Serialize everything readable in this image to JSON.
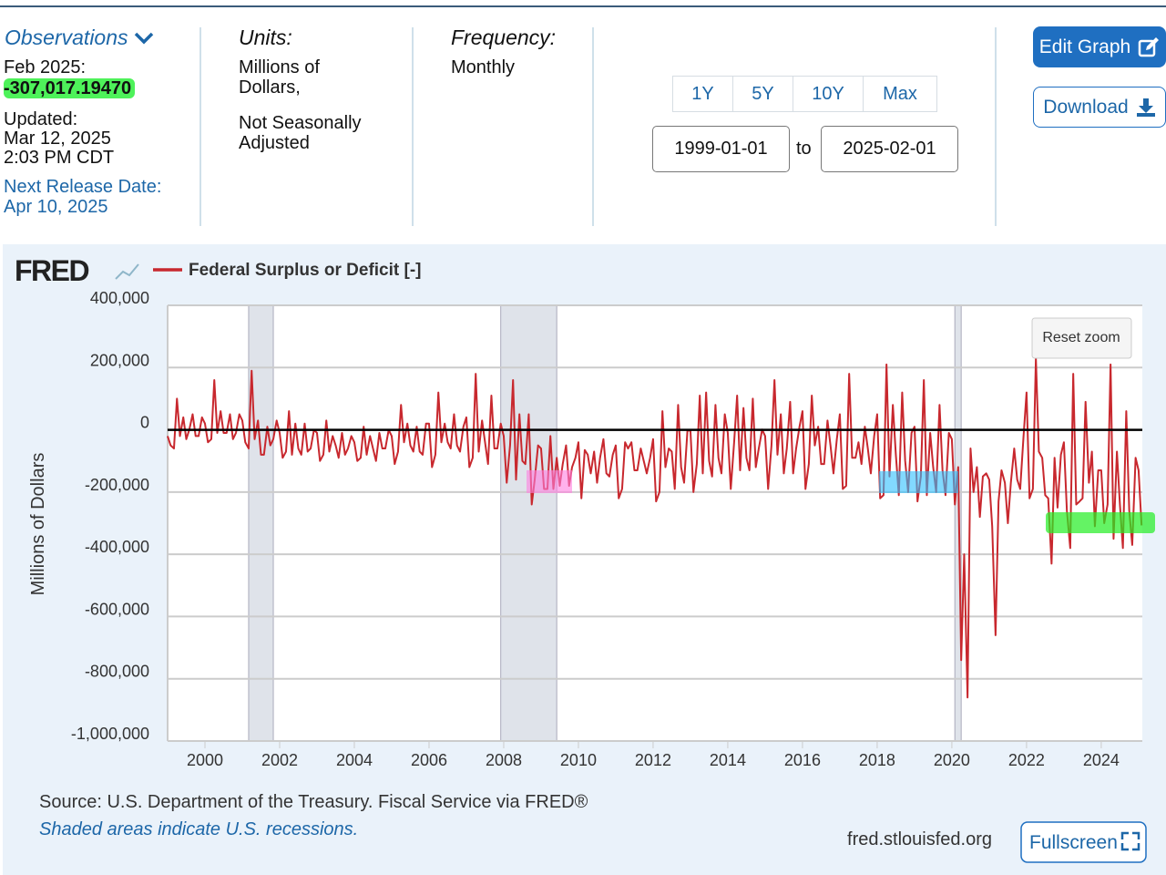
{
  "observations": {
    "title": "Observations",
    "date": "Feb 2025:",
    "value": "-307,017.19470",
    "updated_label": "Updated:",
    "updated_date": "Mar 12, 2025",
    "updated_time": "2:03 PM CDT",
    "next_release": "Next Release Date: Apr 10, 2025"
  },
  "units": {
    "title": "Units:",
    "line1": "Millions of Dollars,",
    "line2": "Not Seasonally Adjusted"
  },
  "frequency": {
    "title": "Frequency:",
    "value": "Monthly"
  },
  "range_buttons": [
    "1Y",
    "5Y",
    "10Y",
    "Max"
  ],
  "date_range": {
    "start": "1999-01-01",
    "to": "to",
    "end": "2025-02-01"
  },
  "buttons": {
    "edit": "Edit Graph",
    "download": "Download",
    "fullscreen": "Fullscreen",
    "reset_zoom": "Reset zoom"
  },
  "footer": {
    "source": "Source: U.S. Department of the Treasury. Fiscal Service via FRED®",
    "note": "Shaded areas indicate U.S. recessions.",
    "site": "fred.stlouisfed.org"
  },
  "chart_data": {
    "type": "line",
    "logo": "FRED",
    "y_label": "Millions of Dollars",
    "xlim": [
      1999,
      2025.1
    ],
    "xticks": [
      2000,
      2002,
      2004,
      2006,
      2008,
      2010,
      2012,
      2014,
      2016,
      2018,
      2020,
      2022,
      2024
    ],
    "ylim": [
      -1000000,
      400000
    ],
    "yticks": [
      {
        "value": -1000000,
        "label": "-1,000,000"
      },
      {
        "value": -800000,
        "label": "-800,000"
      },
      {
        "value": -600000,
        "label": "-600,000"
      },
      {
        "value": -400000,
        "label": "-400,000"
      },
      {
        "value": -200000,
        "label": "-200,000"
      },
      0,
      {
        "value": 200000,
        "label": "200,000"
      },
      {
        "value": 400000,
        "label": "400,000"
      }
    ],
    "grid": true,
    "recessions": [
      [
        2001.17,
        2001.83
      ],
      [
        2007.92,
        2009.42
      ],
      [
        2020.08,
        2020.25
      ]
    ],
    "series": [
      {
        "name": "Federal Surplus or Deficit [-]",
        "color": "#c8282e",
        "x": [
          1999,
          1999.08,
          1999.17,
          1999.25,
          1999.33,
          1999.42,
          1999.5,
          1999.58,
          1999.67,
          1999.75,
          1999.83,
          1999.92,
          2000,
          2000.08,
          2000.17,
          2000.25,
          2000.33,
          2000.42,
          2000.5,
          2000.58,
          2000.67,
          2000.75,
          2000.83,
          2000.92,
          2001,
          2001.08,
          2001.17,
          2001.25,
          2001.33,
          2001.42,
          2001.5,
          2001.58,
          2001.67,
          2001.75,
          2001.83,
          2001.92,
          2002,
          2002.08,
          2002.17,
          2002.25,
          2002.33,
          2002.42,
          2002.5,
          2002.58,
          2002.67,
          2002.75,
          2002.83,
          2002.92,
          2003,
          2003.08,
          2003.17,
          2003.25,
          2003.33,
          2003.42,
          2003.5,
          2003.58,
          2003.67,
          2003.75,
          2003.83,
          2003.92,
          2004,
          2004.08,
          2004.17,
          2004.25,
          2004.33,
          2004.42,
          2004.5,
          2004.58,
          2004.67,
          2004.75,
          2004.83,
          2004.92,
          2005,
          2005.08,
          2005.17,
          2005.25,
          2005.33,
          2005.42,
          2005.5,
          2005.58,
          2005.67,
          2005.75,
          2005.83,
          2005.92,
          2006,
          2006.08,
          2006.17,
          2006.25,
          2006.33,
          2006.42,
          2006.5,
          2006.58,
          2006.67,
          2006.75,
          2006.83,
          2006.92,
          2007,
          2007.08,
          2007.17,
          2007.25,
          2007.33,
          2007.42,
          2007.5,
          2007.58,
          2007.67,
          2007.75,
          2007.83,
          2007.92,
          2008,
          2008.08,
          2008.17,
          2008.25,
          2008.33,
          2008.42,
          2008.5,
          2008.58,
          2008.67,
          2008.75,
          2008.83,
          2008.92,
          2009,
          2009.08,
          2009.17,
          2009.25,
          2009.33,
          2009.42,
          2009.5,
          2009.58,
          2009.67,
          2009.75,
          2009.83,
          2009.92,
          2010,
          2010.08,
          2010.17,
          2010.25,
          2010.33,
          2010.42,
          2010.5,
          2010.58,
          2010.67,
          2010.75,
          2010.83,
          2010.92,
          2011,
          2011.08,
          2011.17,
          2011.25,
          2011.33,
          2011.42,
          2011.5,
          2011.58,
          2011.67,
          2011.75,
          2011.83,
          2011.92,
          2012,
          2012.08,
          2012.17,
          2012.25,
          2012.33,
          2012.42,
          2012.5,
          2012.58,
          2012.67,
          2012.75,
          2012.83,
          2012.92,
          2013,
          2013.08,
          2013.17,
          2013.25,
          2013.33,
          2013.42,
          2013.5,
          2013.58,
          2013.67,
          2013.75,
          2013.83,
          2013.92,
          2014,
          2014.08,
          2014.17,
          2014.25,
          2014.33,
          2014.42,
          2014.5,
          2014.58,
          2014.67,
          2014.75,
          2014.83,
          2014.92,
          2015,
          2015.08,
          2015.17,
          2015.25,
          2015.33,
          2015.42,
          2015.5,
          2015.58,
          2015.67,
          2015.75,
          2015.83,
          2015.92,
          2016,
          2016.08,
          2016.17,
          2016.25,
          2016.33,
          2016.42,
          2016.5,
          2016.58,
          2016.67,
          2016.75,
          2016.83,
          2016.92,
          2017,
          2017.08,
          2017.17,
          2017.25,
          2017.33,
          2017.42,
          2017.5,
          2017.58,
          2017.67,
          2017.75,
          2017.83,
          2017.92,
          2018,
          2018.08,
          2018.17,
          2018.25,
          2018.33,
          2018.42,
          2018.5,
          2018.58,
          2018.67,
          2018.75,
          2018.83,
          2018.92,
          2019,
          2019.08,
          2019.17,
          2019.25,
          2019.33,
          2019.42,
          2019.5,
          2019.58,
          2019.67,
          2019.75,
          2019.83,
          2019.92,
          2020,
          2020.08,
          2020.17,
          2020.25,
          2020.33,
          2020.42,
          2020.5,
          2020.58,
          2020.67,
          2020.75,
          2020.83,
          2020.92,
          2021,
          2021.08,
          2021.17,
          2021.25,
          2021.33,
          2021.42,
          2021.5,
          2021.58,
          2021.67,
          2021.75,
          2021.83,
          2021.92,
          2022,
          2022.08,
          2022.17,
          2022.25,
          2022.33,
          2022.42,
          2022.5,
          2022.58,
          2022.67,
          2022.75,
          2022.83,
          2022.92,
          2023,
          2023.08,
          2023.17,
          2023.25,
          2023.33,
          2023.42,
          2023.5,
          2023.58,
          2023.67,
          2023.75,
          2023.83,
          2023.92,
          2024,
          2024.08,
          2024.17,
          2024.25,
          2024.33,
          2024.42,
          2024.5,
          2024.58,
          2024.67,
          2024.75,
          2024.83,
          2024.92,
          2025,
          2025.08
        ],
        "values": [
          -20000,
          -50000,
          -60000,
          100000,
          -20000,
          40000,
          -30000,
          0,
          50000,
          -20000,
          -20000,
          40000,
          20000,
          -40000,
          -30000,
          160000,
          -10000,
          60000,
          -10000,
          -10000,
          50000,
          -30000,
          -10000,
          50000,
          30000,
          -40000,
          -60000,
          190000,
          -30000,
          30000,
          -80000,
          -80000,
          10000,
          -50000,
          -30000,
          30000,
          -10000,
          -90000,
          -70000,
          60000,
          -80000,
          20000,
          -60000,
          -80000,
          20000,
          -70000,
          -60000,
          0,
          -10000,
          -100000,
          -80000,
          30000,
          -70000,
          -20000,
          -50000,
          -90000,
          -10000,
          -80000,
          -60000,
          -20000,
          -40000,
          -100000,
          -90000,
          10000,
          -80000,
          -20000,
          -60000,
          -100000,
          -10000,
          -60000,
          -60000,
          0,
          -20000,
          -110000,
          -70000,
          80000,
          -40000,
          20000,
          -50000,
          -70000,
          10000,
          -70000,
          -80000,
          20000,
          20000,
          -120000,
          -80000,
          120000,
          -40000,
          20000,
          -40000,
          -60000,
          50000,
          -50000,
          -70000,
          10000,
          40000,
          -120000,
          -90000,
          180000,
          -70000,
          30000,
          -40000,
          -110000,
          110000,
          -60000,
          -60000,
          20000,
          -20000,
          -170000,
          -50000,
          160000,
          -160000,
          50000,
          -100000,
          -110000,
          50000,
          -240000,
          -160000,
          -50000,
          -60000,
          -190000,
          -190000,
          -20000,
          -190000,
          -90000,
          -180000,
          -110000,
          -50000,
          -180000,
          -120000,
          -90000,
          -40000,
          -220000,
          -65000,
          -80000,
          -140000,
          -70000,
          -170000,
          -90000,
          -30000,
          -140000,
          -150000,
          -80000,
          -50000,
          -220000,
          -190000,
          -40000,
          -60000,
          -40000,
          -130000,
          -130000,
          -60000,
          -100000,
          -140000,
          -90000,
          -30000,
          -230000,
          -200000,
          60000,
          -120000,
          -60000,
          -70000,
          -190000,
          80000,
          -120000,
          -170000,
          -2000,
          -3000,
          -200000,
          -110000,
          110000,
          -140000,
          120000,
          -100000,
          -150000,
          80000,
          -90000,
          -140000,
          50000,
          -10000,
          -190000,
          -40000,
          110000,
          -130000,
          70000,
          -90000,
          -130000,
          100000,
          -120000,
          -60000,
          1000,
          -20000,
          -190000,
          -50000,
          160000,
          -80000,
          50000,
          -140000,
          -60000,
          90000,
          -140000,
          -60000,
          10000,
          60000,
          -190000,
          -110000,
          110000,
          -50000,
          10000,
          -110000,
          -110000,
          30000,
          -50000,
          -140000,
          -30000,
          50000,
          -190000,
          -180000,
          180000,
          -90000,
          -90000,
          -40000,
          -110000,
          10000,
          -60000,
          -140000,
          -20000,
          50000,
          -220000,
          -210000,
          210000,
          -150000,
          80000,
          -80000,
          -210000,
          120000,
          -100000,
          -200000,
          -10000,
          10000,
          -230000,
          -150000,
          160000,
          -210000,
          -10000,
          -120000,
          -200000,
          80000,
          -130000,
          -210000,
          -10000,
          -30000,
          -240000,
          -120000,
          -740000,
          -400000,
          -860000,
          -60000,
          -200000,
          -120000,
          -280000,
          -150000,
          -140000,
          -160000,
          -310000,
          -660000,
          -230000,
          -130000,
          -170000,
          -300000,
          -170000,
          -60000,
          -160000,
          -190000,
          -20000,
          120000,
          -220000,
          -190000,
          230000,
          -70000,
          -90000,
          -210000,
          -220000,
          -430000,
          -90000,
          -250000,
          -80000,
          -40000,
          -260000,
          -380000,
          180000,
          -240000,
          -230000,
          -220000,
          90000,
          -170000,
          -70000,
          -310000,
          -130000,
          -130000,
          -300000,
          -240000,
          210000,
          -350000,
          -70000,
          -240000,
          -380000,
          60000,
          -260000,
          -370000,
          -90000,
          -130000,
          -307017.1947
        ]
      }
    ]
  }
}
